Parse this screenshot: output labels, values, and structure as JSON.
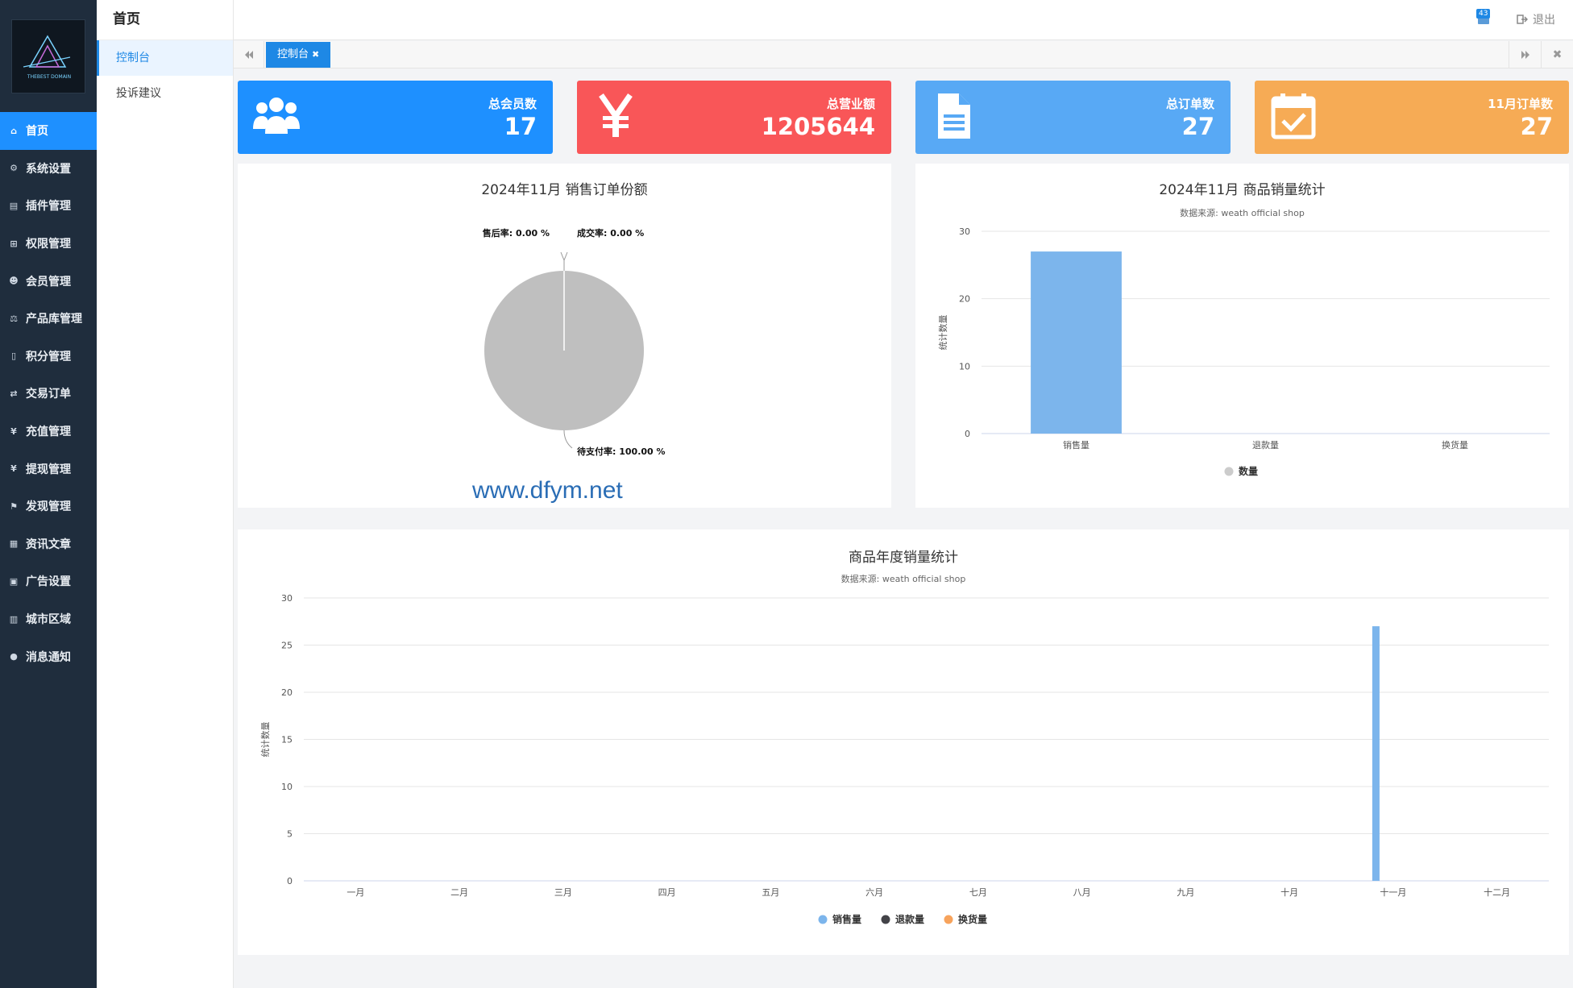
{
  "logo": {
    "text": "THEBEST DOMAIN"
  },
  "nav": [
    {
      "label": "首页",
      "icon": "home-icon",
      "active": true
    },
    {
      "label": "系统设置",
      "icon": "gear-icon"
    },
    {
      "label": "插件管理",
      "icon": "plugin-icon"
    },
    {
      "label": "权限管理",
      "icon": "sitemap-icon"
    },
    {
      "label": "会员管理",
      "icon": "users-icon"
    },
    {
      "label": "产品库管理",
      "icon": "scale-icon"
    },
    {
      "label": "积分管理",
      "icon": "file-icon"
    },
    {
      "label": "交易订单",
      "icon": "exchange-icon"
    },
    {
      "label": "充值管理",
      "icon": "yen-icon"
    },
    {
      "label": "提现管理",
      "icon": "yen-icon"
    },
    {
      "label": "发现管理",
      "icon": "flag-icon"
    },
    {
      "label": "资讯文章",
      "icon": "newspaper-icon"
    },
    {
      "label": "广告设置",
      "icon": "image-icon"
    },
    {
      "label": "城市区域",
      "icon": "map-icon"
    },
    {
      "label": "消息通知",
      "icon": "comment-icon"
    }
  ],
  "subnav": {
    "title": "首页",
    "items": [
      {
        "label": "控制台",
        "active": true
      },
      {
        "label": "投诉建议"
      }
    ]
  },
  "header": {
    "badge": "43",
    "logout": "退出"
  },
  "tabs": [
    {
      "label": "控制台"
    }
  ],
  "cards": [
    {
      "label": "总会员数",
      "value": "17",
      "color": "#1e90ff",
      "icon": "users-icon"
    },
    {
      "label": "总营业额",
      "value": "1205644",
      "color": "#f95658",
      "icon": "yen-icon"
    },
    {
      "label": "总订单数",
      "value": "27",
      "color": "#58a9f5",
      "icon": "document-icon"
    },
    {
      "label": "11月订单数",
      "value": "27",
      "color": "#f6ab55",
      "icon": "calendar-check-icon"
    }
  ],
  "watermark": "www.dfym.net",
  "colors": {
    "accent": "#1e88e5",
    "sidebar": "#1f2d3d"
  },
  "chart_data": [
    {
      "type": "pie",
      "title": "2024年11月 销售订单份额",
      "slices": [
        {
          "label": "售后率",
          "value": 0.0,
          "display": "售后率: 0.00 %"
        },
        {
          "label": "成交率",
          "value": 0.0,
          "display": "成交率: 0.00 %"
        },
        {
          "label": "待支付率",
          "value": 100.0,
          "display": "待支付率: 100.00 %"
        }
      ]
    },
    {
      "type": "bar",
      "title": "2024年11月 商品销量统计",
      "subtitle": "数据来源: weath official shop",
      "ylabel": "统计数量",
      "categories": [
        "销售量",
        "退款量",
        "换货量"
      ],
      "series": [
        {
          "name": "数量",
          "values": [
            27,
            0,
            0
          ]
        }
      ],
      "ylim": [
        0,
        30
      ],
      "yticks": [
        0,
        10,
        20,
        30
      ],
      "legend": "bottom",
      "grid": true
    },
    {
      "type": "bar",
      "title": "商品年度销量统计",
      "subtitle": "数据来源: weath official shop",
      "ylabel": "统计数量",
      "categories": [
        "一月",
        "二月",
        "三月",
        "四月",
        "五月",
        "六月",
        "七月",
        "八月",
        "九月",
        "十月",
        "十一月",
        "十二月"
      ],
      "series": [
        {
          "name": "销售量",
          "values": [
            0,
            0,
            0,
            0,
            0,
            0,
            0,
            0,
            0,
            0,
            27,
            0
          ]
        },
        {
          "name": "退款量",
          "values": [
            0,
            0,
            0,
            0,
            0,
            0,
            0,
            0,
            0,
            0,
            0,
            0
          ]
        },
        {
          "name": "换货量",
          "values": [
            0,
            0,
            0,
            0,
            0,
            0,
            0,
            0,
            0,
            0,
            0,
            0
          ]
        }
      ],
      "series_colors": [
        "#7cb5ec",
        "#434348",
        "#f7a35c"
      ],
      "ylim": [
        0,
        30
      ],
      "yticks": [
        0,
        5,
        10,
        15,
        20,
        25,
        30
      ],
      "legend": "bottom",
      "grid": true
    }
  ]
}
